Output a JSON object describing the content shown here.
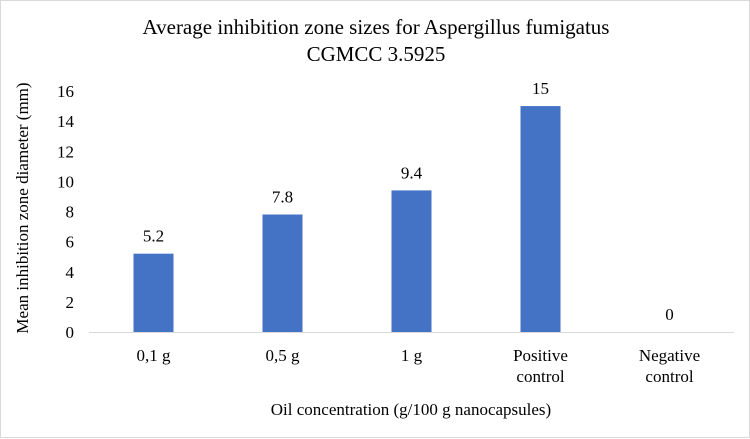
{
  "chart_data": {
    "type": "bar",
    "title": [
      "Average inhibition zone sizes for Aspergillus fumigatus",
      "CGMCC 3.5925"
    ],
    "xlabel": "Oil concentration (g/100 g nanocapsules)",
    "ylabel": "Mean inhibition zone diameter (mm)",
    "categories": [
      [
        "0,1 g"
      ],
      [
        "0,5 g"
      ],
      [
        "1 g"
      ],
      [
        "Positive",
        "control"
      ],
      [
        "Negative",
        "control"
      ]
    ],
    "values": [
      5.2,
      7.8,
      9.4,
      15,
      0
    ],
    "data_labels": [
      "5.2",
      "7.8",
      "9.4",
      "15",
      "0"
    ],
    "ylim": [
      0,
      16
    ],
    "yticks": [
      0,
      2,
      4,
      6,
      8,
      10,
      12,
      14,
      16
    ],
    "grid": false,
    "legend": "none",
    "bar_color": "#4472c4"
  }
}
